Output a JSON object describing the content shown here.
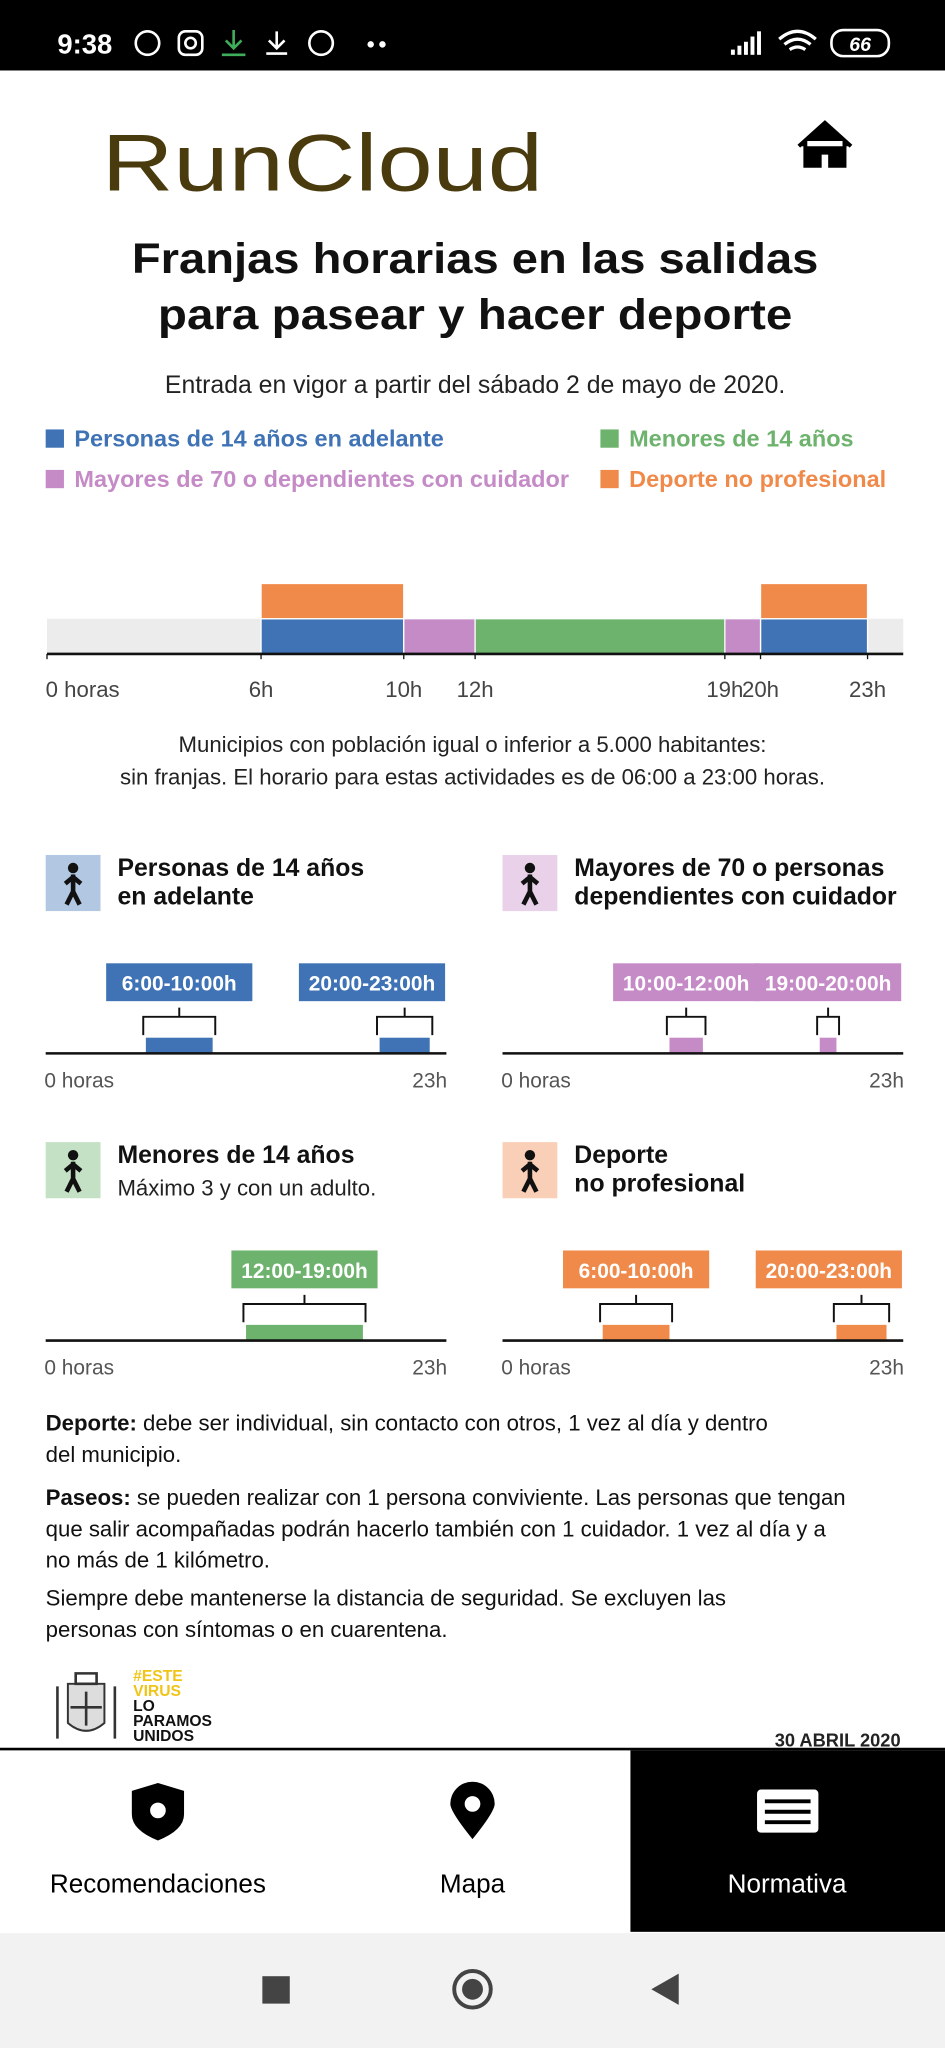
{
  "status_bar": {
    "time": "9:38",
    "battery": "66"
  },
  "header": {
    "logo": "RunCloud"
  },
  "infographic": {
    "title_lines": [
      "Franjas horarias en las salidas",
      "para pasear y hacer deporte"
    ],
    "subtitle": "Entrada en vigor a partir del sábado 2 de mayo de 2020.",
    "timeline": {
      "xlim": [
        0,
        24
      ],
      "ticks": [
        {
          "value": 0,
          "label": "0 horas"
        },
        {
          "value": 6,
          "label": "6h"
        },
        {
          "value": 10,
          "label": "10h"
        },
        {
          "value": 12,
          "label": "12h"
        },
        {
          "value": 19,
          "label": "19h"
        },
        {
          "value": 20,
          "label": "20h"
        },
        {
          "value": 23,
          "label": "23h"
        }
      ]
    },
    "groups": [
      {
        "name": "Personas de 14 años en adelante",
        "color": "#3f73b5",
        "panel_title_lines": [
          "Personas de 14 años",
          "en adelante"
        ],
        "ranges": [
          [
            6,
            10
          ],
          [
            20,
            23
          ]
        ],
        "range_labels": [
          "6:00-10:00h",
          "20:00-23:00h"
        ]
      },
      {
        "name": "Mayores de 70 o dependientes con cuidador",
        "color": "#c58bc7",
        "panel_title_lines": [
          "Mayores de 70 o personas",
          "dependientes con cuidador"
        ],
        "ranges": [
          [
            10,
            12
          ],
          [
            19,
            20
          ]
        ],
        "range_labels": [
          "10:00-12:00h",
          "19:00-20:00h"
        ]
      },
      {
        "name": "Menores de 14 años",
        "color": "#6db36d",
        "panel_title_lines": [
          "Menores de 14 años"
        ],
        "panel_subtitle": "Máximo 3 y con un adulto.",
        "ranges": [
          [
            12,
            19
          ]
        ],
        "range_labels": [
          "12:00-19:00h"
        ]
      },
      {
        "name": "Deporte no profesional",
        "color": "#f08a4b",
        "panel_title_lines": [
          "Deporte",
          "no profesional"
        ],
        "ranges": [
          [
            6,
            10
          ],
          [
            20,
            23
          ]
        ],
        "range_labels": [
          "6:00-10:00h",
          "20:00-23:00h"
        ]
      }
    ],
    "note_lines": [
      "Municipios con población igual o inferior a 5.000 habitantes:",
      "sin franjas. El horario para estas actividades es de 06:00 a 23:00 horas."
    ],
    "paragraphs": [
      {
        "lead": "Deporte:",
        "lines": [
          "debe ser individual, sin contacto con otros, 1 vez al día y dentro",
          "del municipio."
        ]
      },
      {
        "lead": "Paseos:",
        "lines": [
          "se pueden realizar con 1 persona conviviente. Las personas que tengan",
          "que salir acompañadas podrán hacerlo también con 1 cuidador. 1 vez al día y a",
          "no más de 1 kilómetro."
        ]
      },
      {
        "lines": [
          "Siempre debe mantenerse la distancia de seguridad. Se excluyen las",
          "personas con síntomas o en cuarentena."
        ]
      }
    ],
    "footer": {
      "slogan_lines": [
        "#ESTE",
        "VIRUS",
        "LO",
        "PARAMOS",
        "UNIDOS"
      ],
      "date": "30 ABRIL 2020"
    }
  },
  "nav": {
    "items": [
      "Recomendaciones",
      "Mapa",
      "Normativa"
    ],
    "selected": "Normativa"
  }
}
